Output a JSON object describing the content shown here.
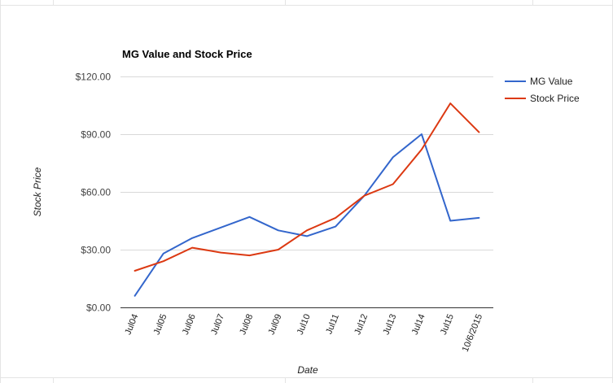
{
  "chart_data": {
    "type": "line",
    "title": "MG Value and Stock Price",
    "xlabel": "Date",
    "ylabel": "Stock Price",
    "categories": [
      "Jul04",
      "Jul05",
      "Jul06",
      "Jul07",
      "Jul08",
      "Jul09",
      "Jul10",
      "Jul11",
      "Jul12",
      "Jul13",
      "Jul14",
      "Jul15",
      "10/6/2015"
    ],
    "series": [
      {
        "name": "MG Value",
        "color": "#3366cc",
        "values": [
          6,
          28,
          36,
          41.5,
          47,
          40,
          37,
          42,
          58,
          78,
          90,
          45,
          46.5
        ]
      },
      {
        "name": "Stock Price",
        "color": "#dc3912",
        "values": [
          19,
          24,
          31,
          28.5,
          27,
          30,
          40,
          46.5,
          58,
          64,
          82,
          106,
          91
        ]
      }
    ],
    "ylim": [
      0,
      120
    ],
    "yticks": [
      0,
      30,
      60,
      90,
      120
    ],
    "ytick_labels": [
      "$0.00",
      "$30.00",
      "$60.00",
      "$90.00",
      "$120.00"
    ],
    "grid": true,
    "legend_position": "right"
  }
}
